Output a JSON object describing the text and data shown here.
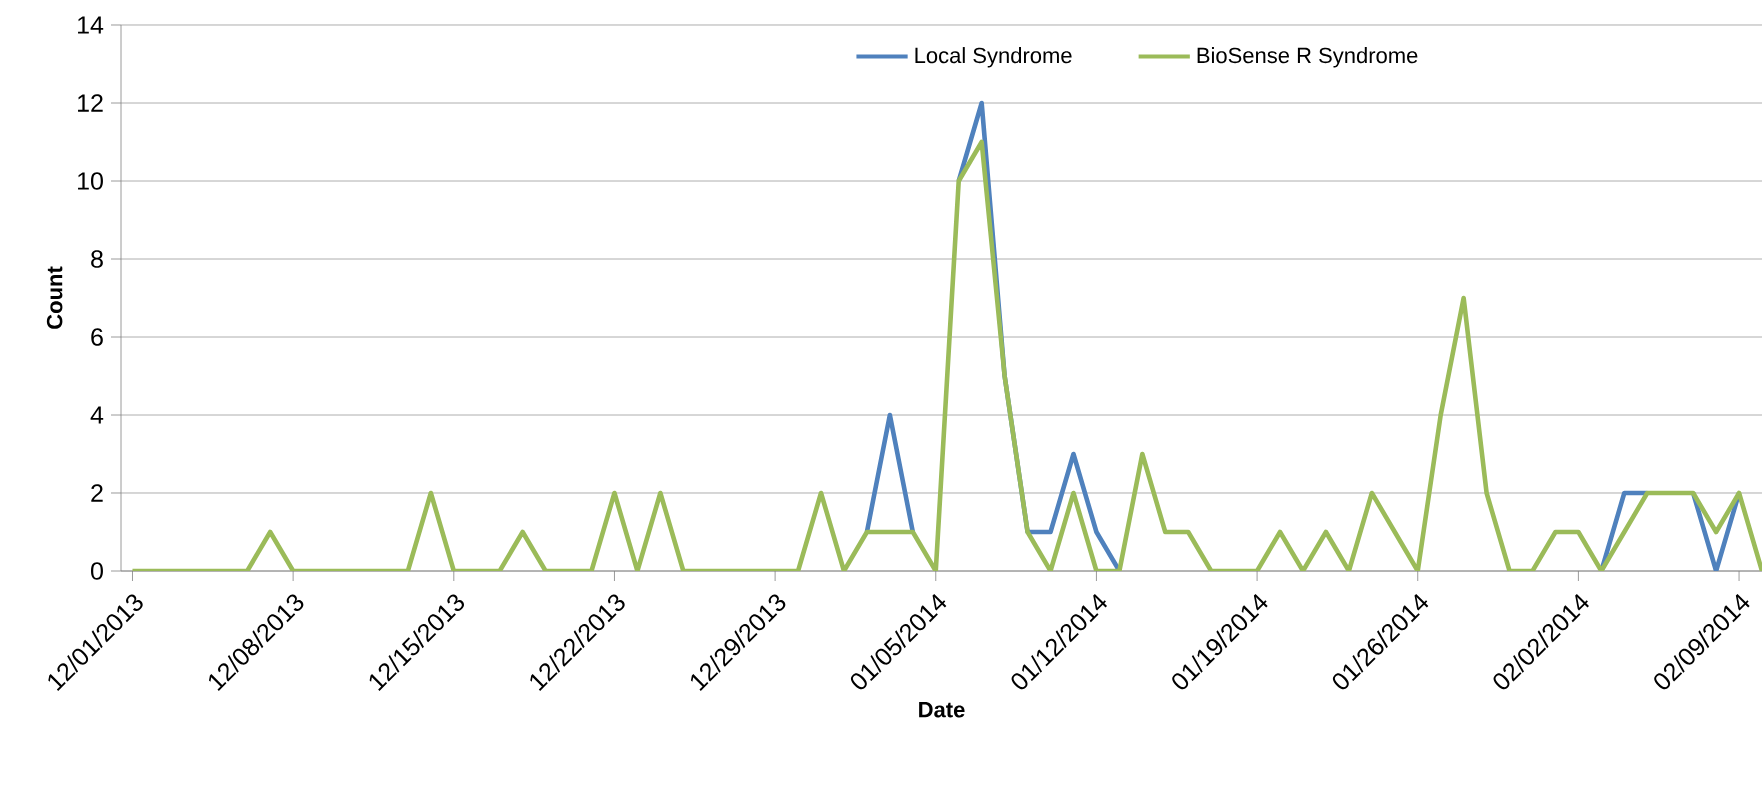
{
  "chart_data": {
    "type": "line",
    "xlabel": "Date",
    "ylabel": "Count",
    "categories": [
      "12/01/2013",
      null,
      null,
      null,
      null,
      null,
      null,
      "12/08/2013",
      null,
      null,
      null,
      null,
      null,
      null,
      "12/15/2013",
      null,
      null,
      null,
      null,
      null,
      null,
      "12/22/2013",
      null,
      null,
      null,
      null,
      null,
      null,
      "12/29/2013",
      null,
      null,
      null,
      null,
      null,
      null,
      "01/05/2014",
      null,
      null,
      null,
      null,
      null,
      null,
      "01/12/2014",
      null,
      null,
      null,
      null,
      null,
      null,
      "01/19/2014",
      null,
      null,
      null,
      null,
      null,
      null,
      "01/26/2014",
      null,
      null,
      null,
      null,
      null,
      null,
      "02/02/2014",
      null,
      null,
      null,
      null,
      null,
      null,
      "02/09/2014",
      null
    ],
    "series": [
      {
        "name": "Local Syndrome",
        "color": "#4f81bd",
        "values": [
          null,
          null,
          null,
          null,
          null,
          null,
          null,
          null,
          null,
          null,
          null,
          null,
          null,
          null,
          null,
          null,
          null,
          null,
          null,
          null,
          null,
          null,
          null,
          null,
          null,
          null,
          null,
          null,
          null,
          null,
          null,
          null,
          1,
          4,
          1,
          null,
          10,
          12,
          5,
          1,
          1,
          3,
          1,
          0,
          null,
          null,
          null,
          null,
          null,
          null,
          null,
          null,
          null,
          null,
          null,
          null,
          null,
          null,
          null,
          null,
          null,
          null,
          null,
          null,
          0,
          2,
          2,
          null,
          2,
          0,
          2,
          null
        ]
      },
      {
        "name": "BioSense R Syndrome",
        "color": "#9bbb59",
        "values": [
          0,
          0,
          0,
          0,
          0,
          0,
          1,
          0,
          0,
          0,
          0,
          0,
          0,
          2,
          0,
          0,
          0,
          1,
          0,
          0,
          0,
          2,
          0,
          2,
          0,
          0,
          0,
          0,
          0,
          0,
          2,
          0,
          1,
          1,
          1,
          0,
          10,
          11,
          5,
          1,
          0,
          2,
          0,
          0,
          3,
          1,
          1,
          0,
          0,
          0,
          1,
          0,
          1,
          0,
          2,
          1,
          0,
          4,
          7,
          2,
          0,
          0,
          1,
          1,
          0,
          1,
          2,
          2,
          2,
          1,
          2,
          0
        ]
      }
    ],
    "ylim": [
      0,
      14
    ],
    "yticks": [
      0,
      2,
      4,
      6,
      8,
      10,
      12,
      14
    ],
    "grid": "y",
    "legend": "top",
    "marker": "none",
    "line_style": "solid"
  }
}
